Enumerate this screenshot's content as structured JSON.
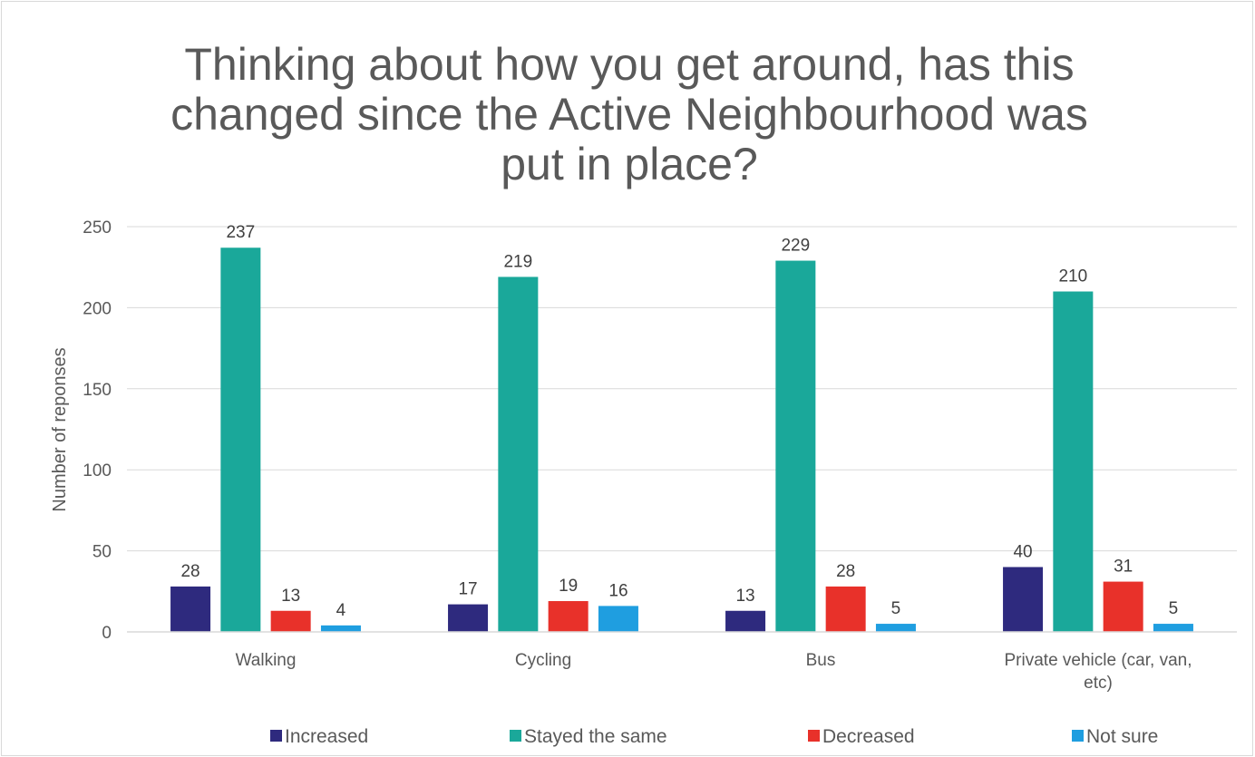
{
  "chart_data": {
    "type": "bar",
    "title_lines": [
      "Thinking about how you get around, has this",
      "changed since the Active Neighbourhood was",
      "put in place?"
    ],
    "xlabel": "",
    "ylabel": "Number of reponses",
    "ylim": [
      0,
      250
    ],
    "yticks": [
      0,
      50,
      100,
      150,
      200,
      250
    ],
    "grid": true,
    "legend_position": "bottom",
    "categories": [
      [
        "Walking"
      ],
      [
        "Cycling"
      ],
      [
        "Bus"
      ],
      [
        "Private vehicle (car, van,",
        "etc)"
      ]
    ],
    "series": [
      {
        "name": "Increased",
        "color": "#2e2a7e",
        "values": [
          28,
          17,
          13,
          40
        ]
      },
      {
        "name": "Stayed the same",
        "color": "#1aa89a",
        "values": [
          237,
          219,
          229,
          210
        ]
      },
      {
        "name": "Decreased",
        "color": "#e8312a",
        "values": [
          13,
          19,
          28,
          31
        ]
      },
      {
        "name": "Not sure",
        "color": "#1f9ee0",
        "values": [
          4,
          16,
          5,
          5
        ]
      }
    ]
  }
}
